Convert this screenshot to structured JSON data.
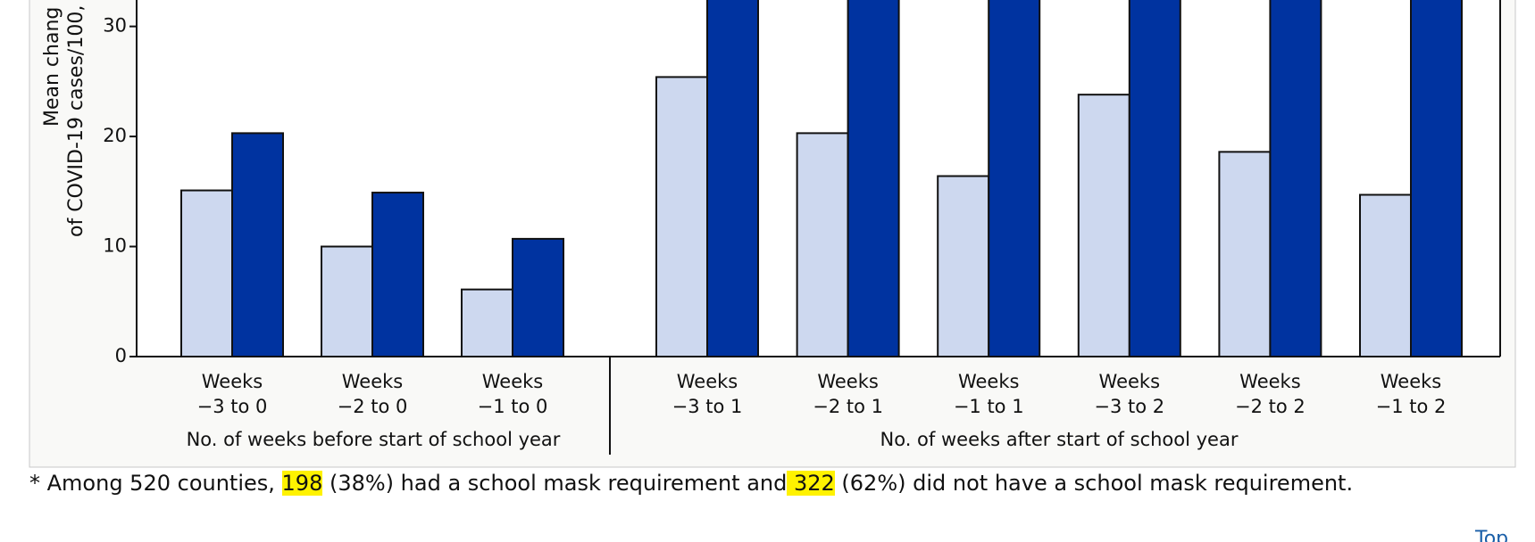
{
  "chart_data": {
    "type": "bar",
    "y_label": [
      "Mean chang",
      "of COVID-19 cases/100,"
    ],
    "categories": [
      [
        "Weeks",
        "−3 to 0"
      ],
      [
        "Weeks",
        "−2 to 0"
      ],
      [
        "Weeks",
        "−1 to 0"
      ],
      [
        "Weeks",
        "−3 to 1"
      ],
      [
        "Weeks",
        "−2 to 1"
      ],
      [
        "Weeks",
        "−1 to 1"
      ],
      [
        "Weeks",
        "−3 to 2"
      ],
      [
        "Weeks",
        "−2 to 2"
      ],
      [
        "Weeks",
        "−1 to 2"
      ]
    ],
    "groups": [
      "No. of weeks before start of school year",
      "No. of weeks after start of school year"
    ],
    "series": [
      {
        "color": "#cdd8ef",
        "values": [
          15.1,
          10.0,
          6.1,
          25.4,
          20.3,
          16.4,
          23.8,
          18.6,
          14.7
        ]
      },
      {
        "color": "#0033a0",
        "values": [
          20.3,
          14.9,
          10.7,
          35,
          35,
          35,
          35,
          35,
          35
        ]
      }
    ],
    "ylim": [
      0,
      32.4
    ],
    "yticks": [
      0,
      10,
      20,
      30
    ]
  },
  "footnote": [
    "* Among 520 counties, ",
    "198",
    " (38%) had a school mask requirement and",
    " 322",
    " (62%) did not have a school mask requirement."
  ],
  "link": "Top"
}
